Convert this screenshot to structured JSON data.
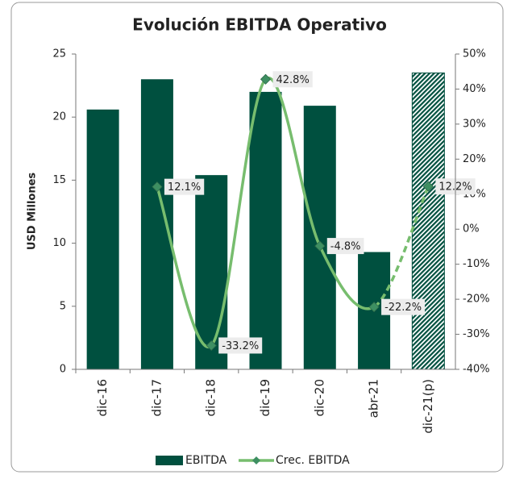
{
  "chart_data": {
    "type": "bar_line",
    "title": "Evolución EBITDA Operativo",
    "y_label": "USD Millones",
    "categories": [
      "dic-16",
      "dic-17",
      "dic-18",
      "dic-19",
      "dic-20",
      "abr-21",
      "dic-21(p)"
    ],
    "series": [
      {
        "name": "EBITDA",
        "type": "bar",
        "color": "#00503f",
        "values": [
          20.6,
          23.0,
          15.4,
          22.0,
          20.9,
          9.3,
          23.5
        ],
        "hatch": [
          false,
          false,
          false,
          false,
          false,
          false,
          true
        ]
      },
      {
        "name": "Crec. EBITDA",
        "type": "line",
        "axis": "y2",
        "color": "#77bd6e",
        "marker_color": "#3e8f62",
        "values": [
          null,
          12.1,
          -33.2,
          42.8,
          -4.8,
          -22.2,
          12.2
        ],
        "value_labels": [
          null,
          "12.1%",
          "-33.2%",
          "42.8%",
          "-4.8%",
          "-22.2%",
          "12.2%"
        ],
        "dashed": [
          false,
          false,
          false,
          false,
          false,
          false,
          true
        ]
      }
    ],
    "ylim": [
      0,
      25
    ],
    "yticks": [
      0,
      5,
      10,
      15,
      20,
      25
    ],
    "y2lim": [
      -40,
      50
    ],
    "y2ticks": [
      {
        "value": -40,
        "label": "-40%"
      },
      {
        "value": -30,
        "label": "-30%"
      },
      {
        "value": -20,
        "label": "-20%"
      },
      {
        "value": -10,
        "label": "-10%"
      },
      {
        "value": 0,
        "label": "0%"
      },
      {
        "value": 10,
        "label": "10%"
      },
      {
        "value": 20,
        "label": "20%"
      },
      {
        "value": 30,
        "label": "30%"
      },
      {
        "value": 40,
        "label": "40%"
      },
      {
        "value": 50,
        "label": "50%"
      }
    ],
    "grid": false,
    "legend": "bottom"
  }
}
